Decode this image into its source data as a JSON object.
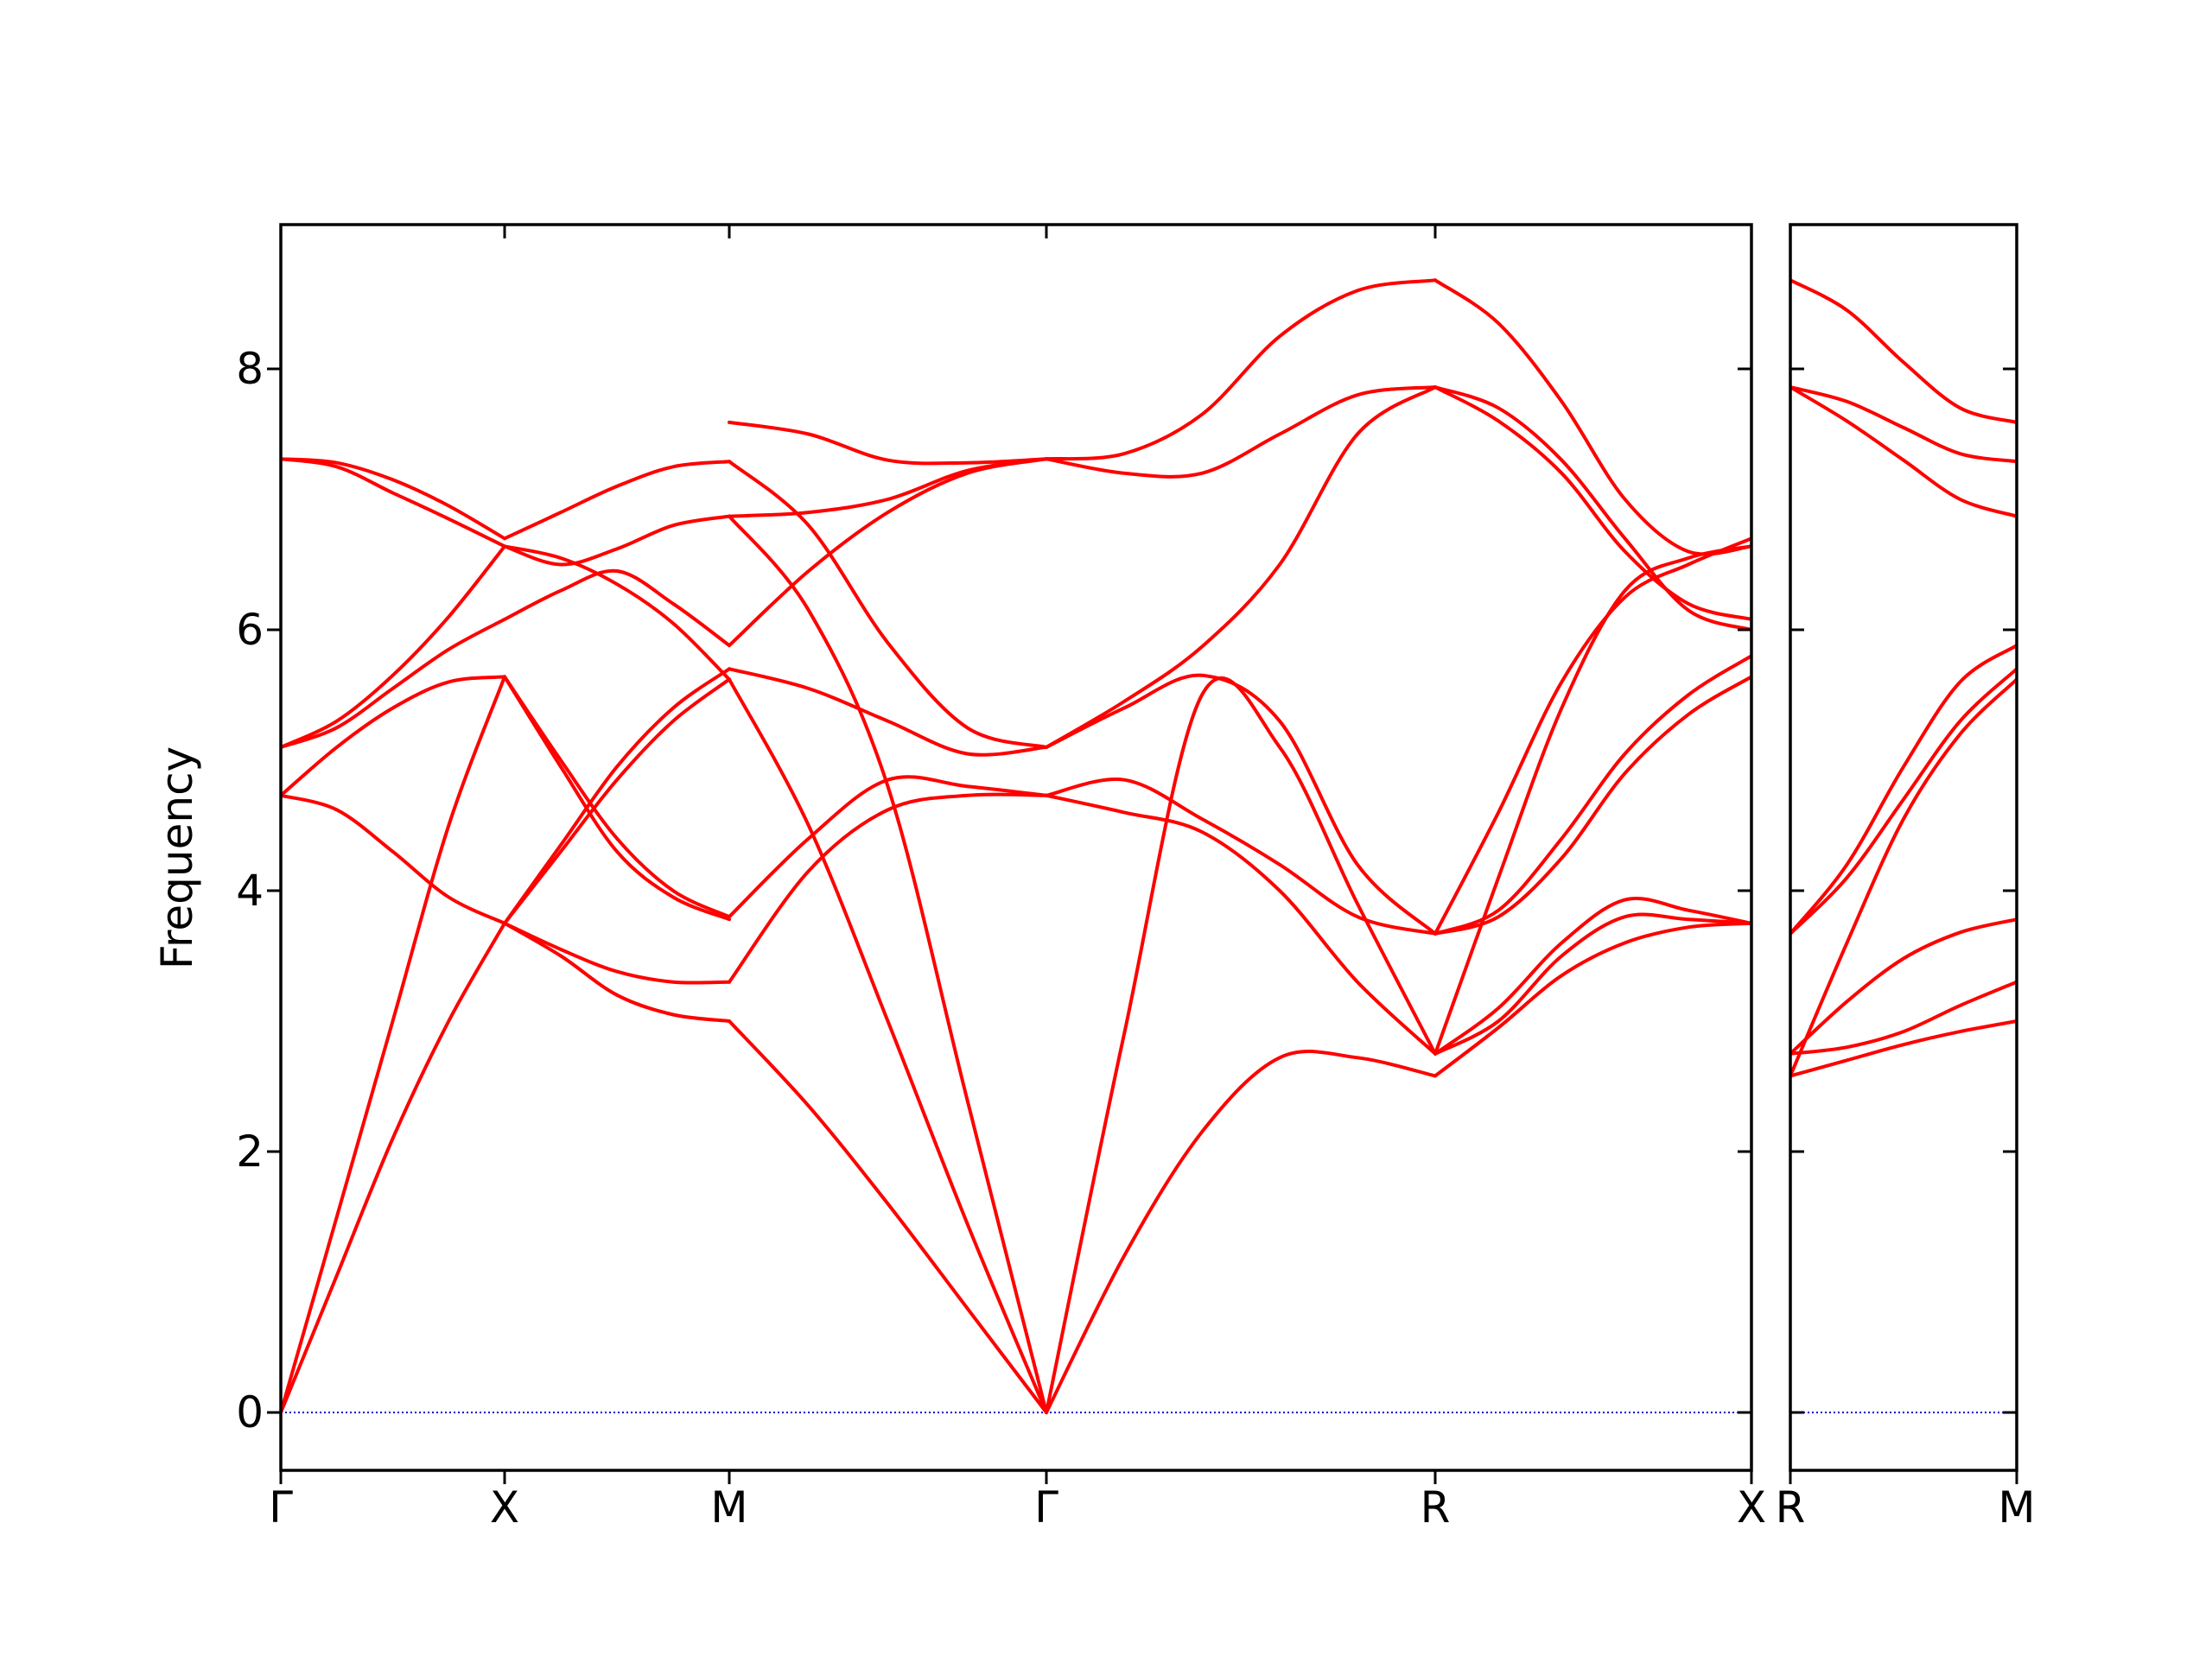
{
  "chart_data": {
    "type": "line",
    "ylabel": "Frequency",
    "ylim": [
      -0.42,
      9.12
    ],
    "yticks": [
      0,
      2,
      4,
      6,
      8
    ],
    "colors": {
      "bands": "#ff0000",
      "zero_line": "#0000cc",
      "axes": "#000000"
    },
    "grid": false,
    "panels": [
      {
        "name": "left-panel",
        "segments": [
          {
            "from": "Γ",
            "to": "X",
            "t": [
              0,
              0.25,
              0.5,
              0.75,
              1
            ],
            "bands": [
              [
                0,
                1.05,
                2.1,
                3.0,
                3.75
              ],
              [
                0,
                1.5,
                3.0,
                4.5,
                5.64
              ],
              [
                4.73,
                4.62,
                4.3,
                3.95,
                3.75
              ],
              [
                4.73,
                5.1,
                5.4,
                5.6,
                5.64
              ],
              [
                5.1,
                5.25,
                5.55,
                5.85,
                6.08
              ],
              [
                5.1,
                5.3,
                5.65,
                6.1,
                6.64
              ],
              [
                7.31,
                7.28,
                7.15,
                6.95,
                6.7
              ],
              [
                7.31,
                7.25,
                7.05,
                6.85,
                6.64
              ]
            ]
          },
          {
            "from": "X",
            "to": "M",
            "t": [
              0,
              0.25,
              0.5,
              0.75,
              1
            ],
            "bands": [
              [
                3.75,
                3.5,
                3.2,
                3.05,
                3.0
              ],
              [
                3.75,
                3.55,
                3.38,
                3.3,
                3.3
              ],
              [
                5.64,
                4.95,
                4.3,
                3.95,
                3.78
              ],
              [
                5.64,
                5.0,
                4.4,
                4.0,
                3.8
              ],
              [
                3.75,
                4.3,
                4.85,
                5.3,
                5.62
              ],
              [
                3.75,
                4.35,
                4.95,
                5.4,
                5.7
              ],
              [
                6.08,
                6.3,
                6.45,
                6.2,
                5.88
              ],
              [
                6.64,
                6.55,
                6.35,
                6.05,
                5.62
              ],
              [
                6.64,
                6.5,
                6.62,
                6.8,
                6.87
              ],
              [
                6.7,
                6.9,
                7.1,
                7.25,
                7.29
              ]
            ]
          },
          {
            "from": "M",
            "to": "Γ",
            "t": [
              0,
              0.25,
              0.5,
              0.75,
              1
            ],
            "bands": [
              [
                3.0,
                2.35,
                1.6,
                0.8,
                0
              ],
              [
                5.62,
                4.5,
                3.0,
                1.45,
                0
              ],
              [
                6.87,
                6.15,
                4.8,
                2.4,
                0
              ],
              [
                3.3,
                4.15,
                4.62,
                4.73,
                4.73
              ],
              [
                3.8,
                4.4,
                4.85,
                4.8,
                4.73
              ],
              [
                5.7,
                5.55,
                5.3,
                5.05,
                5.1
              ],
              [
                5.88,
                6.45,
                6.9,
                7.2,
                7.31
              ],
              [
                6.87,
                6.9,
                7.0,
                7.22,
                7.31
              ],
              [
                7.29,
                6.8,
                5.9,
                5.25,
                5.1
              ],
              [
                7.59,
                7.5,
                7.3,
                7.28,
                7.31
              ]
            ]
          },
          {
            "from": "Γ",
            "to": "R",
            "t": [
              0,
              0.2,
              0.4,
              0.6,
              0.8,
              1
            ],
            "bands": [
              [
                0,
                1.2,
                2.15,
                2.72,
                2.72,
                2.58
              ],
              [
                0,
                2.9,
                5.5,
                5.1,
                3.9,
                2.75
              ],
              [
                4.73,
                4.6,
                4.45,
                4.0,
                3.3,
                2.75
              ],
              [
                4.73,
                4.85,
                4.55,
                4.2,
                3.8,
                3.67
              ],
              [
                5.1,
                5.4,
                5.65,
                5.3,
                4.2,
                3.67
              ],
              [
                5.1,
                5.45,
                5.87,
                6.5,
                7.5,
                7.86
              ],
              [
                7.31,
                7.2,
                7.2,
                7.5,
                7.8,
                7.86
              ],
              [
                7.31,
                7.35,
                7.65,
                8.25,
                8.6,
                8.68
              ]
            ]
          },
          {
            "from": "R",
            "to": "X",
            "t": [
              0,
              0.2,
              0.4,
              0.6,
              0.8,
              1
            ],
            "bands": [
              [
                2.58,
                2.95,
                3.35,
                3.6,
                3.72,
                3.75
              ],
              [
                2.75,
                3.0,
                3.5,
                3.8,
                3.78,
                3.75
              ],
              [
                2.75,
                3.1,
                3.6,
                3.93,
                3.85,
                3.75
              ],
              [
                3.67,
                3.8,
                4.25,
                4.9,
                5.35,
                5.64
              ],
              [
                3.67,
                3.85,
                4.4,
                5.05,
                5.5,
                5.8
              ],
              [
                2.75,
                4.1,
                5.4,
                6.3,
                6.55,
                6.64
              ],
              [
                3.67,
                4.6,
                5.6,
                6.25,
                6.5,
                6.7
              ],
              [
                7.86,
                7.7,
                7.3,
                6.7,
                6.15,
                6.0
              ],
              [
                7.86,
                7.6,
                7.2,
                6.6,
                6.2,
                6.08
              ],
              [
                8.68,
                8.35,
                7.75,
                7.0,
                6.6,
                6.64
              ]
            ]
          }
        ]
      },
      {
        "name": "right-panel",
        "segments": [
          {
            "from": "R",
            "to": "M",
            "t": [
              0,
              0.25,
              0.5,
              0.75,
              1
            ],
            "bands": [
              [
                2.58,
                2.7,
                2.82,
                2.92,
                3.0
              ],
              [
                2.75,
                2.8,
                2.92,
                3.12,
                3.3
              ],
              [
                2.75,
                3.15,
                3.48,
                3.68,
                3.78
              ],
              [
                2.58,
                3.6,
                4.55,
                5.2,
                5.62
              ],
              [
                3.67,
                4.1,
                4.7,
                5.3,
                5.7
              ],
              [
                3.67,
                4.2,
                4.95,
                5.6,
                5.88
              ],
              [
                7.86,
                7.6,
                7.3,
                7.0,
                6.87
              ],
              [
                7.86,
                7.75,
                7.55,
                7.35,
                7.29
              ],
              [
                8.68,
                8.45,
                8.05,
                7.7,
                7.59
              ]
            ]
          }
        ]
      }
    ],
    "xticks": {
      "left": [
        "Γ",
        "X",
        "M",
        "Γ",
        "R",
        "X"
      ],
      "right": [
        "R",
        "M"
      ]
    }
  }
}
